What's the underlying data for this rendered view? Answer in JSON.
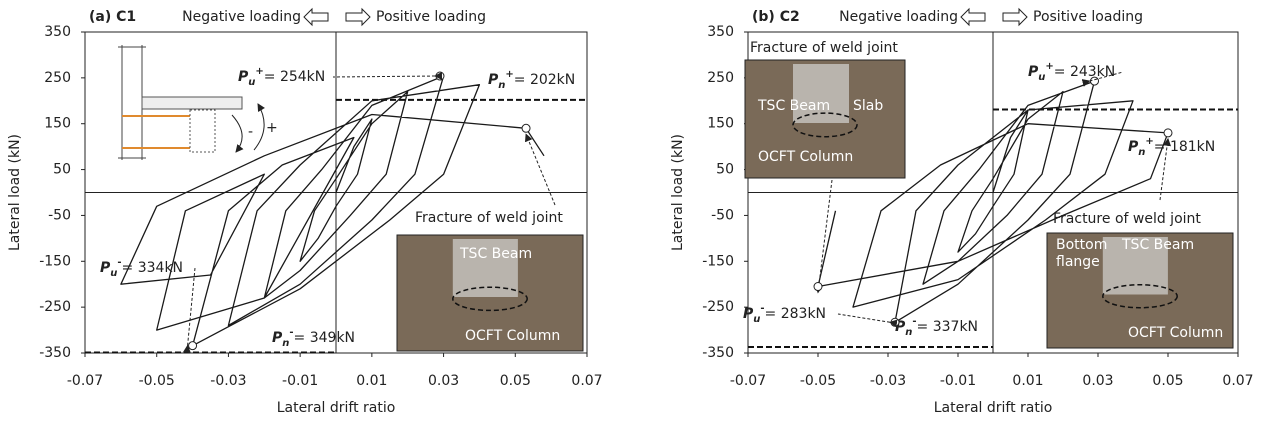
{
  "chart_data": [
    {
      "type": "line",
      "title": "(a) C1",
      "negative_label": "Negative loading",
      "positive_label": "Positive loading",
      "xlabel": "Lateral drift ratio",
      "ylabel": "Lateral load (kN)",
      "xlim": [
        -0.07,
        0.07
      ],
      "xticks": [
        -0.07,
        -0.05,
        -0.03,
        -0.01,
        0.01,
        0.03,
        0.05,
        0.07
      ],
      "ylim": [
        -350,
        350
      ],
      "yticks": [
        350,
        250,
        150,
        50,
        -50,
        -150,
        -250,
        -350
      ],
      "series": [
        {
          "color": "#1a1a1a",
          "x": [
            0,
            0.005,
            0.01,
            0.006,
            0,
            -0.005,
            -0.01,
            -0.006,
            0,
            0.01,
            0.02,
            0.014,
            0.004,
            -0.01,
            -0.02,
            -0.014,
            -0.004,
            0.01,
            0.03,
            0.022,
            0.01,
            -0.01,
            -0.03,
            -0.022,
            -0.01,
            0.01,
            0.04,
            0.03,
            0.015,
            -0.01,
            -0.04,
            -0.03,
            -0.015,
            0.005,
            -0.02,
            -0.05,
            -0.042,
            -0.02,
            -0.035,
            -0.06,
            -0.05,
            -0.02,
            0.01,
            0.053,
            0.058
          ],
          "values": [
            0,
            100,
            160,
            40,
            -30,
            -100,
            -150,
            -40,
            30,
            150,
            220,
            40,
            -50,
            -170,
            -230,
            -40,
            50,
            190,
            254,
            40,
            -60,
            -200,
            -290,
            -40,
            60,
            200,
            235,
            40,
            -60,
            -210,
            -334,
            -40,
            60,
            120,
            -230,
            -300,
            -40,
            40,
            -180,
            -200,
            -30,
            80,
            170,
            140,
            80
          ]
        }
      ],
      "points": [
        {
          "x": 0.029,
          "y": 254,
          "label": {
            "symbol": "P",
            "sub": "u",
            "sup": "+",
            "text": "= 254kN"
          }
        },
        {
          "x": -0.04,
          "y": -334,
          "label": {
            "symbol": "P",
            "sub": "u",
            "sup": "-",
            "text": "= 334kN"
          }
        },
        {
          "x": 0.053,
          "y": 140,
          "label": {
            "text": "Fracture of weld joint"
          }
        }
      ],
      "reference_lines": [
        {
          "y": 202,
          "x_range": [
            0,
            0.07
          ],
          "label": {
            "symbol": "P",
            "sub": "n",
            "sup": "+",
            "text": "= 202kN"
          }
        },
        {
          "y": -349,
          "x_range": [
            -0.07,
            0
          ],
          "label": {
            "symbol": "P",
            "sub": "n",
            "sup": "-",
            "text": "= 349kN"
          }
        }
      ],
      "photo_labels": [
        "TSC Beam",
        "OCFT Column"
      ],
      "diagram_labels": [
        "-",
        "+"
      ]
    },
    {
      "type": "line",
      "title": "(b) C2",
      "negative_label": "Negative loading",
      "positive_label": "Positive loading",
      "xlabel": "Lateral drift ratio",
      "ylabel": "Lateral load (kN)",
      "xlim": [
        -0.07,
        0.07
      ],
      "xticks": [
        -0.07,
        -0.05,
        -0.03,
        -0.01,
        0.01,
        0.03,
        0.05,
        0.07
      ],
      "ylim": [
        -350,
        350
      ],
      "yticks": [
        350,
        250,
        150,
        50,
        -50,
        -150,
        -250,
        -350
      ],
      "series": [
        {
          "color": "#1a1a1a",
          "x": [
            0,
            0.005,
            0.01,
            0.006,
            0,
            -0.005,
            -0.01,
            -0.006,
            0,
            0.01,
            0.02,
            0.014,
            0.004,
            -0.01,
            -0.02,
            -0.014,
            -0.004,
            0.01,
            0.029,
            0.022,
            0.01,
            -0.01,
            -0.028,
            -0.022,
            -0.01,
            0.01,
            0.04,
            0.032,
            0.015,
            -0.01,
            -0.04,
            -0.032,
            -0.015,
            0.01,
            0.05,
            0.045,
            0.02,
            -0.01,
            -0.05,
            -0.045
          ],
          "values": [
            0,
            120,
            180,
            40,
            -30,
            -90,
            -130,
            -40,
            30,
            160,
            220,
            40,
            -50,
            -150,
            -200,
            -40,
            50,
            190,
            243,
            40,
            -60,
            -200,
            -283,
            -40,
            60,
            180,
            200,
            40,
            -60,
            -190,
            -250,
            -40,
            60,
            150,
            130,
            30,
            -50,
            -150,
            -205,
            -40
          ]
        }
      ],
      "points": [
        {
          "x": 0.029,
          "y": 243,
          "label": {
            "symbol": "P",
            "sub": "u",
            "sup": "+",
            "text": "= 243kN"
          }
        },
        {
          "x": -0.028,
          "y": -283,
          "label": {
            "symbol": "P",
            "sub": "u",
            "sup": "-",
            "text": "= 283kN"
          }
        },
        {
          "x": -0.05,
          "y": -205,
          "label": {
            "text": "Fracture of weld joint"
          }
        },
        {
          "x": 0.05,
          "y": 130,
          "label": {
            "text": "Fracture of weld joint"
          }
        }
      ],
      "reference_lines": [
        {
          "y": 181,
          "x_range": [
            0,
            0.07
          ],
          "label": {
            "symbol": "P",
            "sub": "n",
            "sup": "+",
            "text": "= 181kN"
          }
        },
        {
          "y": -337,
          "x_range": [
            -0.07,
            0
          ],
          "label": {
            "symbol": "P",
            "sub": "n",
            "sup": "-",
            "text": "= 337kN"
          }
        }
      ],
      "photo_labels": [
        "TSC Beam",
        "Slab",
        "OCFT Column",
        "Bottom",
        "flange",
        "TSC Beam",
        "OCFT Column"
      ]
    }
  ]
}
